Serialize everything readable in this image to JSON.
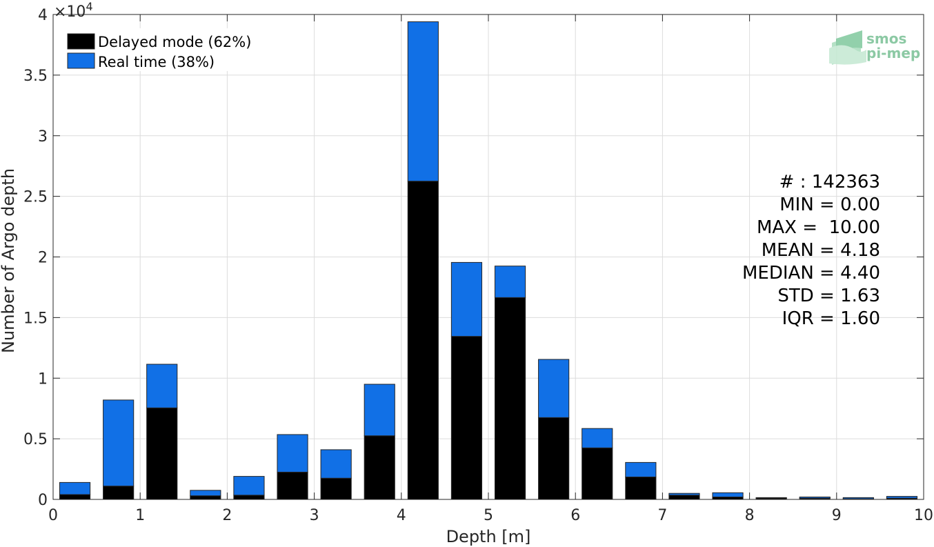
{
  "chart_data": {
    "type": "bar",
    "stacked": true,
    "xlabel": "Depth [m]",
    "ylabel": "Number of Argo depth",
    "exponent_label": "×10",
    "exponent_power": "4",
    "xlim": [
      0,
      10
    ],
    "ylim": [
      0,
      4
    ],
    "y_scale_factor": 10000,
    "xticks": [
      "0",
      "1",
      "2",
      "3",
      "4",
      "5",
      "6",
      "7",
      "8",
      "9",
      "10"
    ],
    "yticks": [
      "0",
      "0.5",
      "1",
      "1.5",
      "2",
      "2.5",
      "3",
      "3.5",
      "4"
    ],
    "grid": true,
    "legend_position": "top-left",
    "bin_centers": [
      0.25,
      0.75,
      1.25,
      1.75,
      2.25,
      2.75,
      3.25,
      3.75,
      4.25,
      4.75,
      5.25,
      5.75,
      6.25,
      6.75,
      7.25,
      7.75,
      8.25,
      8.75,
      9.25,
      9.75
    ],
    "bin_width": 0.5,
    "series": [
      {
        "name": "Delayed mode (62%)",
        "color": "#000000",
        "values": [
          0.04,
          0.11,
          0.755,
          0.03,
          0.035,
          0.225,
          0.175,
          0.525,
          2.625,
          1.345,
          1.665,
          0.675,
          0.425,
          0.185,
          0.035,
          0.02,
          0.01,
          0.01,
          0.005,
          0.01
        ]
      },
      {
        "name": "Real time (38%)",
        "color": "#1170e6",
        "values": [
          0.1,
          0.71,
          0.36,
          0.045,
          0.155,
          0.31,
          0.235,
          0.425,
          1.315,
          0.61,
          0.26,
          0.48,
          0.16,
          0.12,
          0.015,
          0.035,
          0.005,
          0.01,
          0.01,
          0.015
        ]
      }
    ],
    "stats": [
      "# : 142363",
      "MIN = 0.00",
      "MAX =  10.00",
      "MEAN = 4.18",
      "MEDIAN = 4.40",
      "STD = 1.63",
      "IQR = 1.60"
    ],
    "logo": {
      "line1": "smos",
      "line2": "pi-mep"
    }
  }
}
